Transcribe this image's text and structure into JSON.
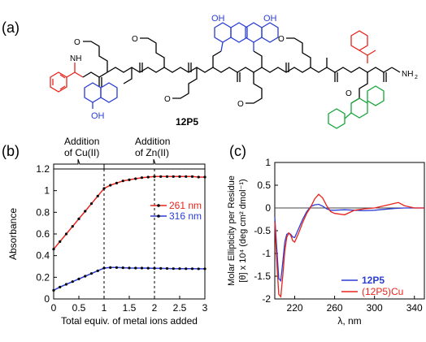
{
  "panel_labels": {
    "a": "(a)",
    "b": "(b)",
    "c": "(c)"
  },
  "structure": {
    "compound_label": "12P5",
    "labels": {
      "oh_top_left": "OH",
      "oh_top_right": "OH",
      "oh_bottom": "OH",
      "methoxy": "O",
      "amine": "NH",
      "amide_n": "N",
      "amide_h": "H",
      "amine_end": "NH",
      "amine_sub": "2",
      "carbonyl_o": "O",
      "pyridine_n": "N",
      "ether_o": "O"
    },
    "colors": {
      "phenyl": "#e8231b",
      "quinoline": "#2a3dd6",
      "terpyridine": "#16a63a",
      "backbone": "#000000"
    }
  },
  "annotations": {
    "addition_cu_line1": "Addition",
    "addition_cu_line2": "of Cu(II)",
    "addition_zn_line1": "Addition",
    "addition_zn_line2": "of Zn(II)"
  },
  "chart_data": [
    {
      "type": "line",
      "xlabel": "Total equiv. of metal ions added",
      "ylabel": "Absorbance",
      "xlim": [
        0,
        3
      ],
      "ylim": [
        0,
        1.2
      ],
      "xticks": [
        "0",
        "0.5",
        "1",
        "1.5",
        "2",
        "2.5",
        "3"
      ],
      "yticks": [
        "0",
        "0.2",
        "0.4",
        "0.6",
        "0.8",
        "1",
        "1.2"
      ],
      "legend_position": "center-right",
      "dashed_lines_at_x": [
        1,
        2
      ],
      "series": [
        {
          "name": "261 nm",
          "color": "#e8231b",
          "x": [
            0,
            0.125,
            0.25,
            0.375,
            0.5,
            0.625,
            0.75,
            0.875,
            1.0,
            1.125,
            1.25,
            1.375,
            1.5,
            1.625,
            1.75,
            1.875,
            2.0,
            2.125,
            2.25,
            2.375,
            2.5,
            2.625,
            2.75,
            2.875,
            3.0
          ],
          "y": [
            0.46,
            0.53,
            0.6,
            0.67,
            0.74,
            0.81,
            0.88,
            0.95,
            1.02,
            1.05,
            1.07,
            1.09,
            1.1,
            1.11,
            1.12,
            1.125,
            1.13,
            1.13,
            1.13,
            1.13,
            1.13,
            1.13,
            1.13,
            1.125,
            1.125
          ]
        },
        {
          "name": "316 nm",
          "color": "#2a3dd6",
          "x": [
            0,
            0.125,
            0.25,
            0.375,
            0.5,
            0.625,
            0.75,
            0.875,
            1.0,
            1.125,
            1.25,
            1.375,
            1.5,
            1.625,
            1.75,
            1.875,
            2.0,
            2.125,
            2.25,
            2.375,
            2.5,
            2.625,
            2.75,
            2.875,
            3.0
          ],
          "y": [
            0.08,
            0.11,
            0.135,
            0.16,
            0.185,
            0.21,
            0.235,
            0.26,
            0.285,
            0.29,
            0.29,
            0.288,
            0.286,
            0.285,
            0.285,
            0.284,
            0.283,
            0.282,
            0.281,
            0.28,
            0.28,
            0.279,
            0.279,
            0.278,
            0.278
          ]
        }
      ]
    },
    {
      "type": "line",
      "xlabel": "λ, nm",
      "ylabel_line1": "Molar Ellipticity per Residue",
      "ylabel_line2": "[θ] x 10⁴ (deg cm² dmol⁻¹)",
      "xlim": [
        200,
        350
      ],
      "ylim": [
        -2,
        1
      ],
      "xticks": [
        "220",
        "260",
        "300",
        "340"
      ],
      "yticks": [
        "-2",
        "-1.5",
        "-1",
        "-0.5",
        "0",
        "0.5",
        "1"
      ],
      "legend_position": "bottom-right",
      "series": [
        {
          "name": "12P5",
          "color": "#2a3dd6",
          "x": [
            200,
            202,
            204,
            206,
            208,
            210,
            212,
            214,
            216,
            218,
            220,
            224,
            228,
            232,
            236,
            240,
            244,
            248,
            252,
            256,
            260,
            270,
            280,
            290,
            300,
            310,
            320,
            330,
            340,
            350
          ],
          "y": [
            -0.2,
            -0.9,
            -1.55,
            -1.6,
            -1.2,
            -0.75,
            -0.58,
            -0.55,
            -0.58,
            -0.64,
            -0.65,
            -0.45,
            -0.25,
            -0.08,
            0.03,
            0.07,
            0.08,
            0.04,
            -0.02,
            -0.05,
            -0.05,
            -0.04,
            -0.05,
            -0.06,
            -0.05,
            -0.03,
            -0.01,
            0.0,
            0.0,
            0.0
          ]
        },
        {
          "name": "(12P5)Cu",
          "color": "#e8231b",
          "x": [
            200,
            202,
            204,
            206,
            208,
            210,
            212,
            214,
            216,
            218,
            220,
            224,
            228,
            232,
            236,
            240,
            244,
            248,
            252,
            256,
            260,
            270,
            280,
            290,
            300,
            310,
            320,
            324,
            330,
            340,
            350
          ],
          "y": [
            -0.3,
            -1.2,
            -1.9,
            -1.95,
            -1.5,
            -0.95,
            -0.65,
            -0.55,
            -0.6,
            -0.72,
            -0.75,
            -0.55,
            -0.32,
            -0.12,
            0.02,
            0.2,
            0.3,
            0.22,
            0.05,
            -0.08,
            -0.12,
            -0.15,
            -0.05,
            -0.02,
            0.0,
            0.05,
            0.1,
            0.12,
            0.05,
            0.0,
            0.0
          ]
        }
      ]
    }
  ]
}
